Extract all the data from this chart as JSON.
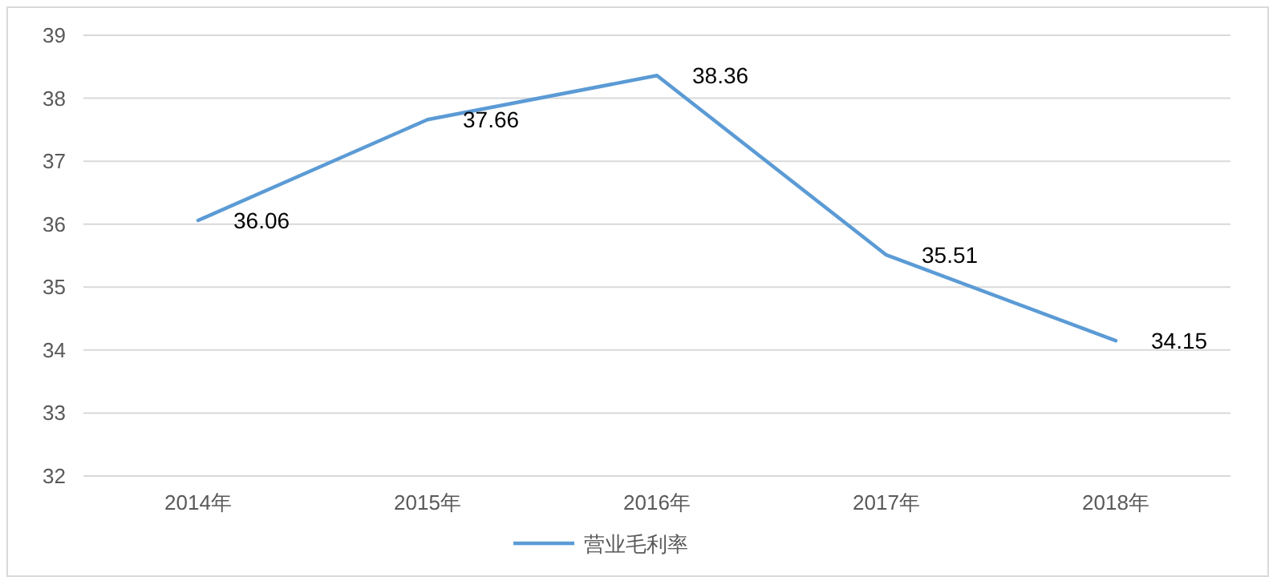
{
  "chart_data": {
    "type": "line",
    "categories": [
      "2014年",
      "2015年",
      "2016年",
      "2017年",
      "2018年"
    ],
    "series": [
      {
        "name": "营业毛利率",
        "color": "#5b9bd5",
        "values": [
          36.06,
          37.66,
          38.36,
          35.51,
          34.15
        ]
      }
    ],
    "ylim": [
      32,
      39
    ],
    "yticks": [
      32,
      33,
      34,
      35,
      36,
      37,
      38,
      39
    ],
    "grid": "y",
    "legend": "bottom",
    "data_labels": true,
    "marker": "none"
  }
}
